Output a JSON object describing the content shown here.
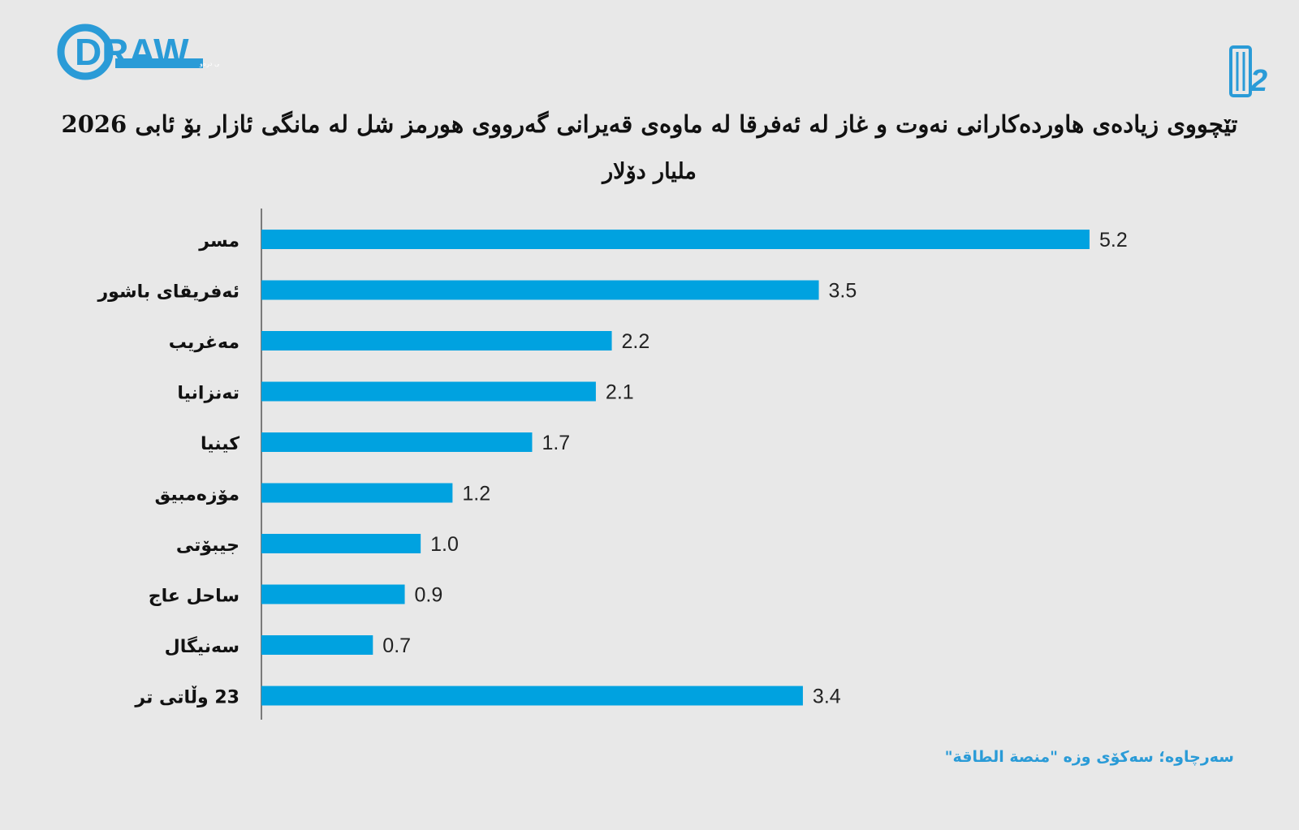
{
  "logo": {
    "brand_text": "DRAW",
    "brand_tagline": "دامەزراوەی میدیایی درەو",
    "right_mark": "2"
  },
  "title": "تێچووی زیادەی هاوردەکارانی نەوت و غاز لە ئەفرقا لە ماوەی قەیرانی گەرووی هورمز شل لە مانگی ئازار بۆ ئابی 2026",
  "subtitle": "ملیار دۆلار",
  "source": "سەرچاوە؛ سەکۆی وزە \"منصة الطاقة\"",
  "colors": {
    "bar": "#00a2e0",
    "background": "#e8e8e8",
    "axis": "#555555",
    "source_text": "#2a9bd7",
    "logo_blue": "#2a9bd7"
  },
  "chart_data": {
    "type": "bar",
    "orientation": "horizontal",
    "categories": [
      "مسر",
      "ئەفریقای باشور",
      "مەغریب",
      "تەنزانیا",
      "کینیا",
      "مۆزەمبیق",
      "جیبۆتی",
      "ساحل عاج",
      "سەنیگال",
      "23 وڵاتی تر"
    ],
    "values": [
      5.2,
      3.5,
      2.2,
      2.1,
      1.7,
      1.2,
      1.0,
      0.9,
      0.7,
      3.4
    ],
    "value_labels": [
      "5.2",
      "3.5",
      "2.2",
      "2.1",
      "1.7",
      "1.2",
      "1.0",
      "0.9",
      "0.7",
      "3.4"
    ],
    "xlim": [
      0,
      5.2
    ],
    "grid": false,
    "legend": false
  }
}
